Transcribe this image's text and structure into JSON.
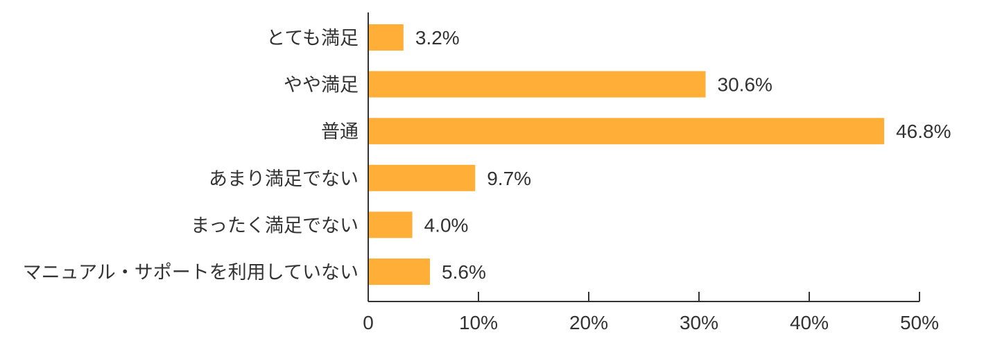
{
  "chart_data": {
    "type": "bar",
    "orientation": "horizontal",
    "categories": [
      "とても満足",
      "やや満足",
      "普通",
      "あまり満足でない",
      "まったく満足でない",
      "マニュアル・サポートを利用していない"
    ],
    "values": [
      3.2,
      30.6,
      46.8,
      9.7,
      4.0,
      5.6
    ],
    "value_labels": [
      "3.2%",
      "30.6%",
      "46.8%",
      "9.7%",
      "4.0%",
      "5.6%"
    ],
    "xlim": [
      0,
      50
    ],
    "xticks": [
      0,
      10,
      20,
      30,
      40,
      50
    ],
    "xtick_labels": [
      "0",
      "10%",
      "20%",
      "30%",
      "40%",
      "50%"
    ],
    "bar_color": "#FFAE38",
    "axis_color": "#333333",
    "grid": false,
    "legend": "none"
  }
}
